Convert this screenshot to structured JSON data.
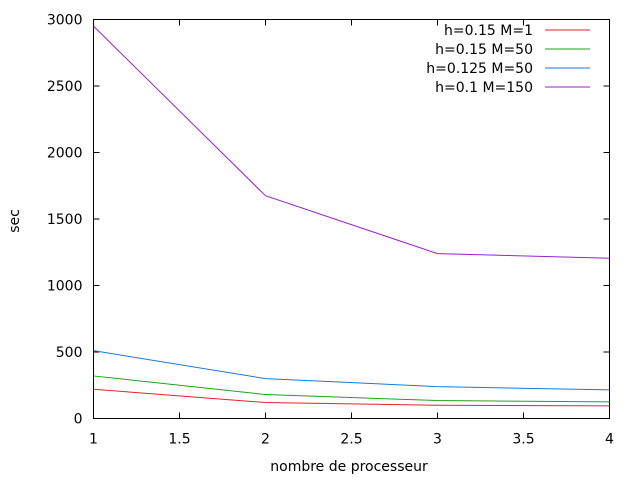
{
  "chart_data": {
    "type": "line",
    "title": "",
    "xlabel": "nombre de processeur",
    "ylabel": "sec",
    "xlim": [
      1,
      4
    ],
    "ylim": [
      0,
      3000
    ],
    "xticks": [
      1,
      1.5,
      2,
      2.5,
      3,
      3.5,
      4
    ],
    "yticks": [
      0,
      500,
      1000,
      1500,
      2000,
      2500,
      3000
    ],
    "xtick_labels": [
      "1",
      "1.5",
      "2",
      "2.5",
      "3",
      "3.5",
      "4"
    ],
    "ytick_labels": [
      "0",
      "500",
      "1000",
      "1500",
      "2000",
      "2500",
      "3000"
    ],
    "grid": false,
    "legend_position": "top-right",
    "series": [
      {
        "name": "h=0.15 M=1",
        "color": "#e0252b",
        "x": [
          1,
          2,
          3,
          4
        ],
        "y": [
          220,
          120,
          100,
          95
        ]
      },
      {
        "name": "h=0.15 M=50",
        "color": "#1ca31c",
        "x": [
          1,
          2,
          3,
          4
        ],
        "y": [
          320,
          180,
          135,
          125
        ]
      },
      {
        "name": "h=0.125 M=50",
        "color": "#1a7ad3",
        "x": [
          1,
          2,
          3,
          4
        ],
        "y": [
          510,
          300,
          240,
          215
        ]
      },
      {
        "name": "h=0.1 M=150",
        "color": "#9b1fd1",
        "x": [
          1,
          2,
          3,
          4
        ],
        "y": [
          2950,
          1675,
          1240,
          1205
        ]
      }
    ]
  }
}
